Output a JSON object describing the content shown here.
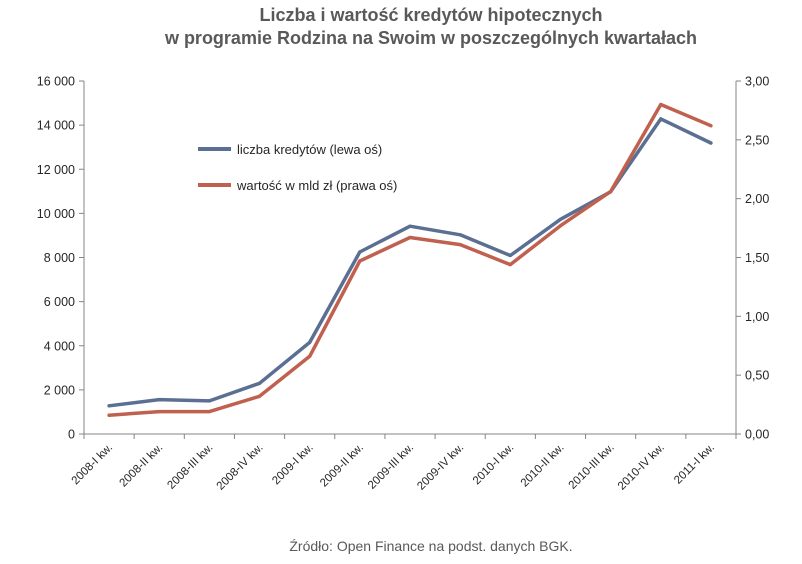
{
  "chart_data": {
    "type": "line",
    "title_line1": "Liczba i wartość kredytów hipotecznych",
    "title_line2": "w programie Rodzina na Swoim w poszczególnych kwartałach",
    "categories": [
      "2008-I kw.",
      "2008-II kw.",
      "2008-III kw.",
      "2008-IV kw.",
      "2009-I kw.",
      "2009-II kw.",
      "2009-III kw.",
      "2009-IV kw.",
      "2010-I kw.",
      "2010-II kw.",
      "2010-III kw.",
      "2010-IV kw.",
      "2011-I kw."
    ],
    "series": [
      {
        "name": "liczba kredytów (lewa oś)",
        "axis": "left",
        "color": "#5a6f91",
        "values": [
          1280,
          1560,
          1500,
          2300,
          4150,
          8250,
          9420,
          9030,
          8090,
          9730,
          10980,
          14280,
          13190
        ]
      },
      {
        "name": "wartość w mld zł (prawa oś)",
        "axis": "right",
        "color": "#c0604f",
        "values": [
          0.16,
          0.19,
          0.19,
          0.32,
          0.66,
          1.47,
          1.67,
          1.61,
          1.44,
          1.77,
          2.06,
          2.8,
          2.62
        ]
      }
    ],
    "y_left": {
      "min": 0,
      "max": 16000,
      "ticks": [
        "0",
        "2 000",
        "4 000",
        "6 000",
        "8 000",
        "10 000",
        "12 000",
        "14 000",
        "16 000"
      ]
    },
    "y_right": {
      "min": 0,
      "max": 3,
      "ticks": [
        "0,00",
        "0,50",
        "1,00",
        "1,50",
        "2,00",
        "2,50",
        "3,00"
      ]
    },
    "grid": false,
    "legend_position": "top-left inside plot"
  },
  "source": "Źródło: Open Finance na podst. danych BGK."
}
